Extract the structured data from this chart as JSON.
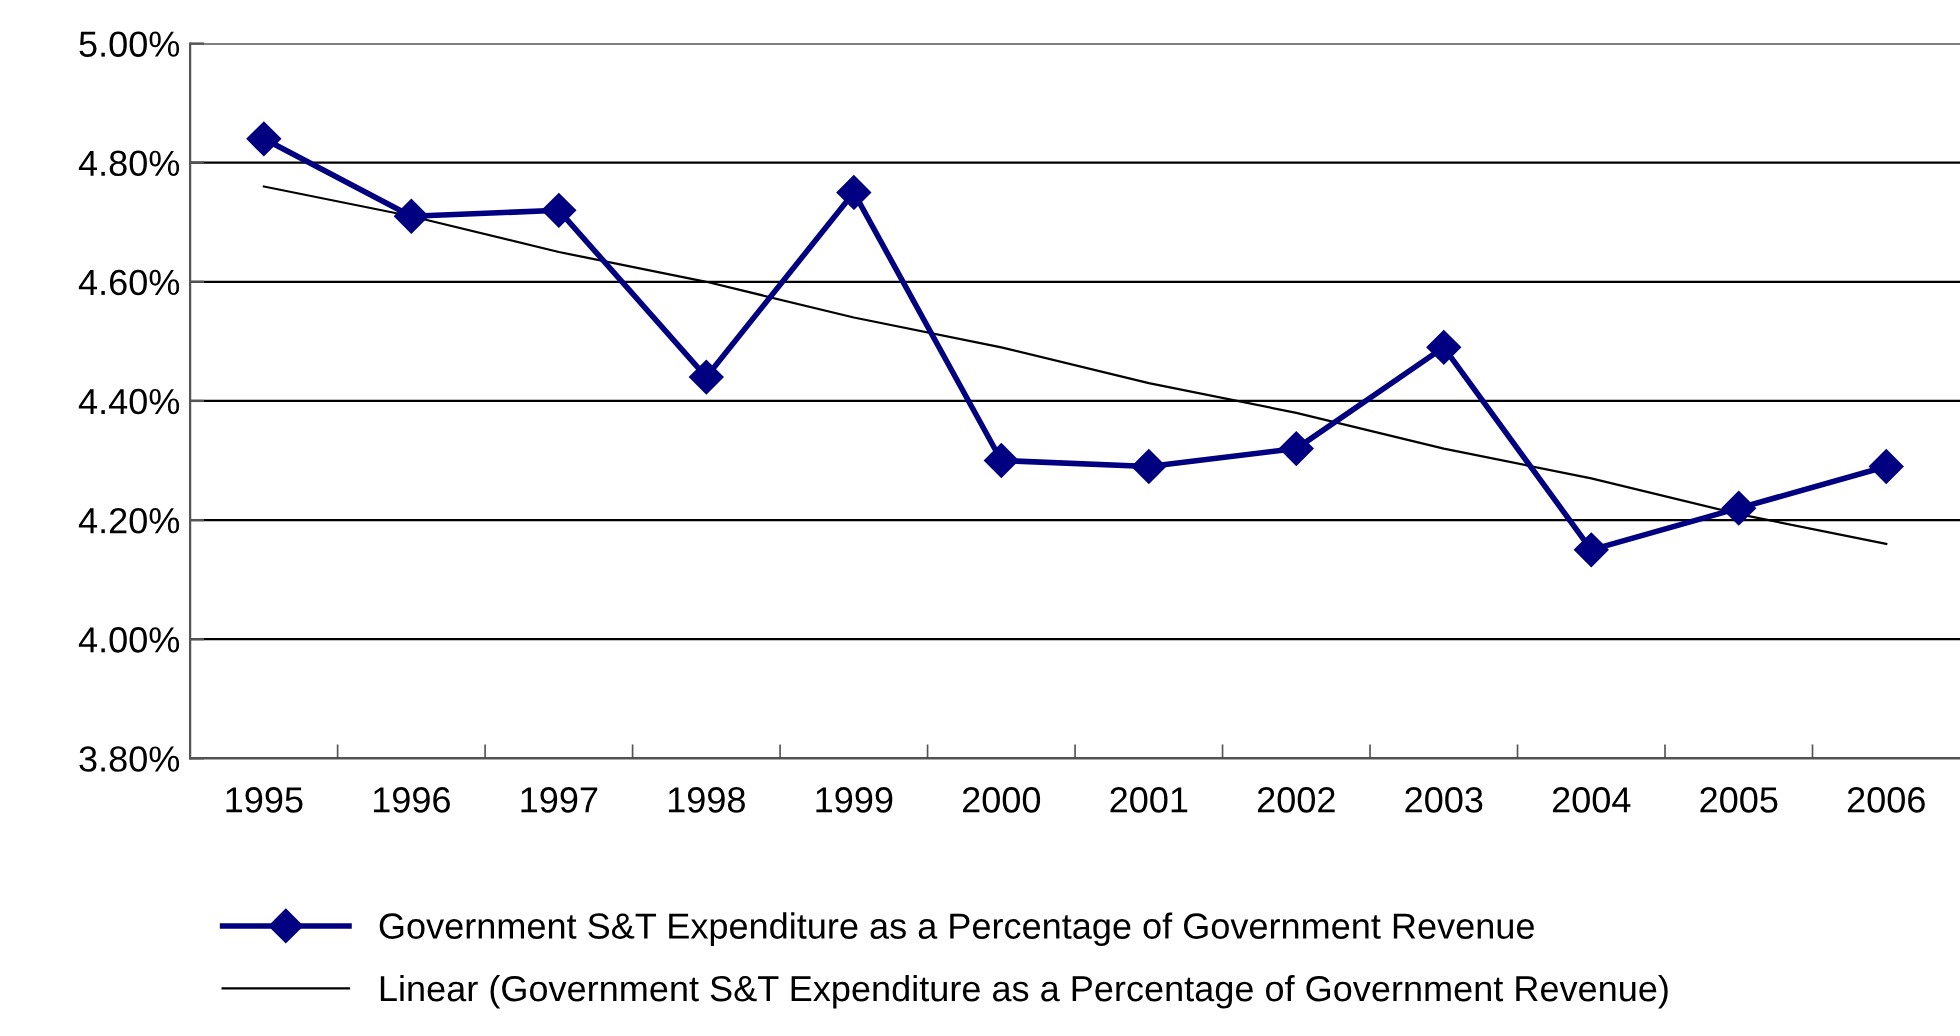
{
  "chart_data": {
    "type": "line",
    "categories": [
      "1995",
      "1996",
      "1997",
      "1998",
      "1999",
      "2000",
      "2001",
      "2002",
      "2003",
      "2004",
      "2005",
      "2006"
    ],
    "series": [
      {
        "name": "Government S&T Expenditure as a Percentage of Government Revenue",
        "color": "#000080",
        "marker": "diamond",
        "values": [
          4.84,
          4.71,
          4.72,
          4.44,
          4.75,
          4.3,
          4.29,
          4.32,
          4.49,
          4.15,
          4.22,
          4.29
        ]
      },
      {
        "name": "Linear (Government S&T Expenditure as a Percentage of Government Revenue)",
        "color": "#000000",
        "marker": "none",
        "values": [
          4.76,
          4.71,
          4.65,
          4.6,
          4.54,
          4.49,
          4.43,
          4.38,
          4.32,
          4.27,
          4.21,
          4.16
        ]
      }
    ],
    "ylim": [
      3.8,
      5.0
    ],
    "yticks": [
      {
        "value": 3.8,
        "label": "3.80%"
      },
      {
        "value": 4.0,
        "label": "4.00%"
      },
      {
        "value": 4.2,
        "label": "4.20%"
      },
      {
        "value": 4.4,
        "label": "4.40%"
      },
      {
        "value": 4.6,
        "label": "4.60%"
      },
      {
        "value": 4.8,
        "label": "4.80%"
      },
      {
        "value": 5.0,
        "label": "5.00%"
      }
    ],
    "grid": "y",
    "legend": "bottom"
  }
}
